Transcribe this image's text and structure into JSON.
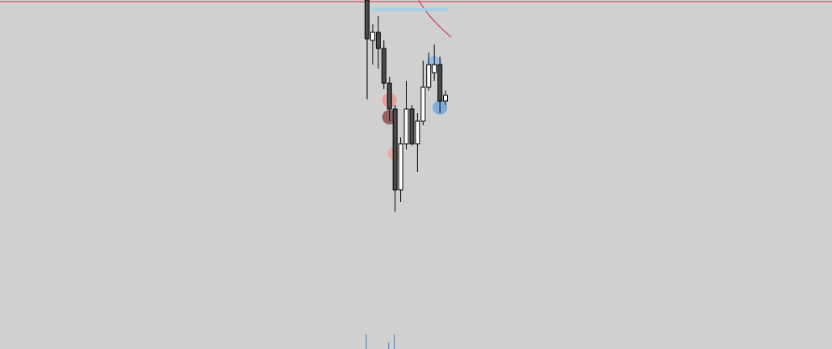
{
  "chart_data": {
    "type": "candlestick",
    "categories": [
      null,
      null,
      null,
      null,
      null,
      null,
      null,
      null,
      null,
      null,
      null,
      null,
      null,
      null,
      null
    ],
    "open": [
      432,
      382,
      392,
      372,
      329,
      297,
      197,
      254,
      297,
      254,
      282,
      324,
      342,
      352,
      307
    ],
    "high": [
      432,
      402,
      412,
      382,
      337,
      302,
      262,
      332,
      302,
      292,
      357,
      367,
      377,
      362,
      320
    ],
    "low": [
      309,
      352,
      347,
      322,
      282,
      170,
      182,
      247,
      252,
      219,
      277,
      320,
      332,
      292,
      302
    ],
    "close": [
      384,
      392,
      372,
      329,
      297,
      197,
      254,
      297,
      254,
      282,
      324,
      352,
      352,
      307,
      314
    ],
    "volume": [
      18,
      null,
      null,
      null,
      8,
      18,
      null,
      null,
      null,
      null,
      null,
      null,
      null,
      null,
      null
    ],
    "ylim": [
      0,
      432
    ],
    "up_color": "#ffffff",
    "down_color": "#4a4a4a",
    "volume_color": "#3a7fd0",
    "levels": [
      {
        "value": 430,
        "color": "#e03040"
      },
      {
        "value": 420,
        "color": "#a8d0e0",
        "from": 1,
        "to": 14
      }
    ],
    "markers": [
      {
        "index": 4,
        "value": 308,
        "color": "#f09090"
      },
      {
        "index": 4,
        "value": 287,
        "color": "#8a4545"
      },
      {
        "index": 5,
        "value": 242,
        "color": "#f0a0a0"
      },
      {
        "index": 12,
        "value": 354,
        "color": "#8cb8e8"
      },
      {
        "index": 13,
        "value": 299,
        "color": "#6aa2e0"
      }
    ]
  }
}
